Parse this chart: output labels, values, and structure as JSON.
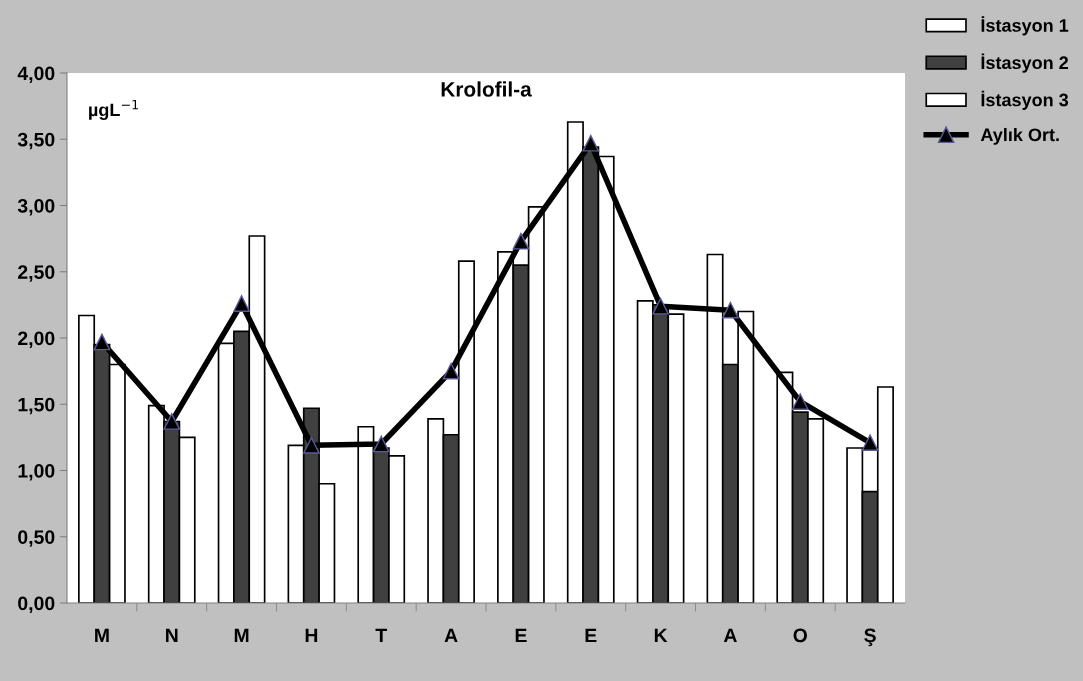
{
  "chart_data": {
    "type": "bar",
    "title": "Krolofil-a",
    "categories": [
      "M",
      "N",
      "M",
      "H",
      "T",
      "A",
      "E",
      "E",
      "K",
      "A",
      "O",
      "Ş"
    ],
    "series": [
      {
        "name": "İstasyon 1",
        "color": "#ffffff",
        "values": [
          2.17,
          1.49,
          1.96,
          1.19,
          1.33,
          1.39,
          2.65,
          3.63,
          2.28,
          2.63,
          1.74,
          1.17
        ]
      },
      {
        "name": "İstasyon 2",
        "color": "#404040",
        "values": [
          1.95,
          1.37,
          2.05,
          1.47,
          1.17,
          1.27,
          2.55,
          3.44,
          2.25,
          1.8,
          1.44,
          0.84
        ]
      },
      {
        "name": "İstasyon 3",
        "color": "#ffffff",
        "values": [
          1.8,
          1.25,
          2.77,
          0.9,
          1.11,
          2.58,
          2.99,
          3.37,
          2.18,
          2.2,
          1.39,
          1.63
        ]
      },
      {
        "name": "Aylık Ort.",
        "type": "line",
        "color": "#000000",
        "marker": "triangle",
        "values": [
          1.97,
          1.37,
          2.26,
          1.19,
          1.2,
          1.75,
          2.73,
          3.47,
          2.24,
          2.21,
          1.52,
          1.21
        ]
      }
    ],
    "ylim": [
      0,
      4
    ],
    "yticks": [
      {
        "value": 0,
        "label": "0,00"
      },
      {
        "value": 0.5,
        "label": "0,50"
      },
      {
        "value": 1,
        "label": "1,00"
      },
      {
        "value": 1.5,
        "label": "1,50"
      },
      {
        "value": 2,
        "label": "2,00"
      },
      {
        "value": 2.5,
        "label": "2,50"
      },
      {
        "value": 3,
        "label": "3,00"
      },
      {
        "value": 3.5,
        "label": "3,50"
      },
      {
        "value": 4,
        "label": "4,00"
      }
    ],
    "annotations": [
      "µgL$^{−1}$"
    ],
    "grid": false,
    "legend": "top right"
  }
}
